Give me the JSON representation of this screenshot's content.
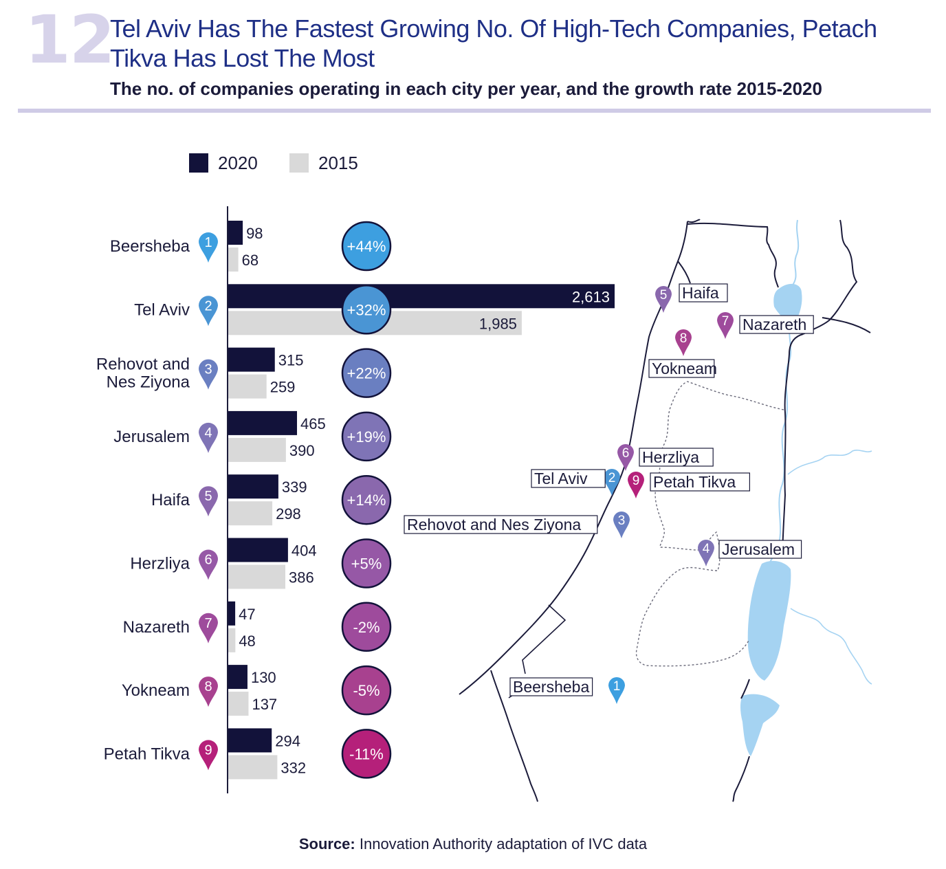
{
  "figure_number": "12",
  "title": "Tel Aviv Has The Fastest Growing No. Of High-Tech Companies, Petach Tikva Has Lost The Most",
  "subtitle": "The no. of companies operating in each city per year, and the growth rate 2015-2020",
  "source_label": "Source:",
  "source_text": " Innovation Authority adaptation of IVC data",
  "colors": {
    "bar_2020": "#12123a",
    "bar_2015": "#d9d9d9",
    "water": "#a5d3f2"
  },
  "chart_data": {
    "type": "bar",
    "orientation": "horizontal",
    "title": "The no. of companies operating in each city per year, and the growth rate 2015-2020",
    "legend": [
      "2020",
      "2015"
    ],
    "legend_position": "top",
    "categories": [
      "Beersheba",
      "Tel Aviv",
      "Rehovot and Nes Ziyona",
      "Jerusalem",
      "Haifa",
      "Herzliya",
      "Nazareth",
      "Yokneam",
      "Petah Tikva"
    ],
    "category_lines": [
      [
        "Beersheba"
      ],
      [
        "Tel Aviv"
      ],
      [
        "Rehovot and",
        "Nes Ziyona"
      ],
      [
        "Jerusalem"
      ],
      [
        "Haifa"
      ],
      [
        "Herzliya"
      ],
      [
        "Nazareth"
      ],
      [
        "Yokneam"
      ],
      [
        "Petah Tikva"
      ]
    ],
    "series": [
      {
        "name": "2020",
        "values": [
          98,
          2613,
          315,
          465,
          339,
          404,
          47,
          130,
          294
        ],
        "labels": [
          "98",
          "2,613",
          "315",
          "465",
          "339",
          "404",
          "47",
          "130",
          "294"
        ]
      },
      {
        "name": "2015",
        "values": [
          68,
          1985,
          259,
          390,
          298,
          386,
          48,
          137,
          332
        ],
        "labels": [
          "68",
          "1,985",
          "259",
          "390",
          "298",
          "386",
          "48",
          "137",
          "332"
        ]
      }
    ],
    "growth_rates": [
      "+44%",
      "+32%",
      "+22%",
      "+19%",
      "+14%",
      "+5%",
      "-2%",
      "-5%",
      "-11%"
    ],
    "rank_numbers": [
      "1",
      "2",
      "3",
      "4",
      "5",
      "6",
      "7",
      "8",
      "9"
    ],
    "rank_colors": [
      "#3d9fe0",
      "#4a95d4",
      "#6a7fc1",
      "#7f74b6",
      "#8a68ad",
      "#9658a6",
      "#9e4b9c",
      "#a8418f",
      "#b5207a"
    ],
    "xlim": [
      0,
      2613
    ],
    "map_labels": [
      "Haifa",
      "Nazareth",
      "Yokneam",
      "Herzliya",
      "Tel Aviv",
      "Petah Tikva",
      "Rehovot and Nes Ziyona",
      "Jerusalem",
      "Beersheba"
    ],
    "map_ranks": [
      "5",
      "7",
      "8",
      "6",
      "2",
      "9",
      "3",
      "4",
      "1"
    ]
  }
}
